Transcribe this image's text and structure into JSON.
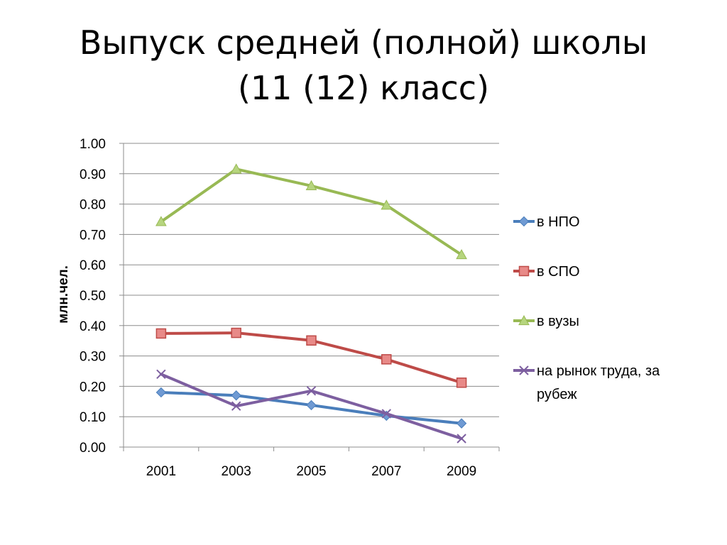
{
  "slide": {
    "title_line1": "Выпуск средней (полной) школы",
    "title_line2": "(11 (12) класс)"
  },
  "chart_data": {
    "type": "line",
    "title": "Выпуск средней (полной) школы (11 (12) класс)",
    "xlabel": "",
    "ylabel": "млн.чел.",
    "categories": [
      "2001",
      "2003",
      "2005",
      "2007",
      "2009"
    ],
    "ylim": [
      0,
      1.0
    ],
    "yticks": [
      "0.00",
      "0.10",
      "0.20",
      "0.30",
      "0.40",
      "0.50",
      "0.60",
      "0.70",
      "0.80",
      "0.90",
      "1.00"
    ],
    "grid": true,
    "legend_position": "right",
    "series": [
      {
        "name": "в НПО",
        "values": [
          0.18,
          0.17,
          0.138,
          0.103,
          0.078
        ],
        "color": "#4a7ebb",
        "marker": "diamond"
      },
      {
        "name": "в СПО",
        "values": [
          0.374,
          0.376,
          0.351,
          0.289,
          0.212
        ],
        "color": "#be4b48",
        "marker": "square"
      },
      {
        "name": "в вузы",
        "values": [
          0.742,
          0.915,
          0.86,
          0.796,
          0.633
        ],
        "color": "#98b954",
        "marker": "triangle"
      },
      {
        "name": "на рынок труда, за рубеж",
        "values": [
          0.24,
          0.135,
          0.185,
          0.11,
          0.028
        ],
        "color": "#7d5fa0",
        "marker": "x"
      }
    ]
  }
}
